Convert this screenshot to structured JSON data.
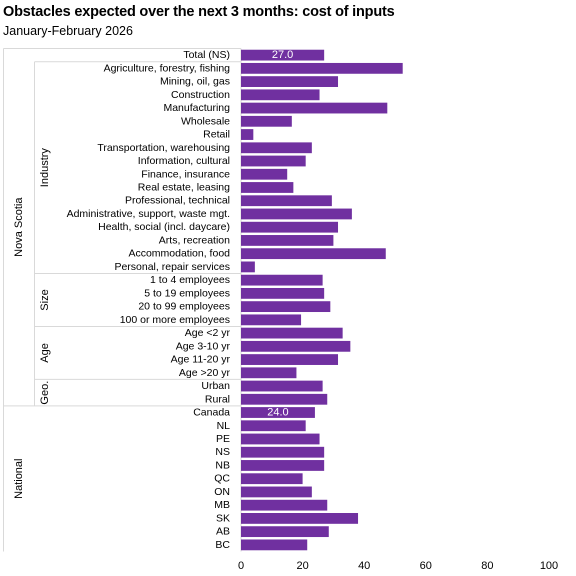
{
  "chart_data": {
    "type": "bar",
    "orientation": "horizontal",
    "title": "Obstacles expected over the next 3 months: cost of inputs",
    "subtitle": "January-February  2026",
    "xlim": [
      0,
      100
    ],
    "xticks": [
      0,
      20,
      40,
      60,
      80,
      100
    ],
    "bar_color": "#7030a0",
    "grid": false,
    "categories": [
      "Total (NS)",
      "Agriculture, forestry, fishing",
      "Mining, oil, gas",
      "Construction",
      "Manufacturing",
      "Wholesale",
      "Retail",
      "Transportation, warehousing",
      "Information, cultural",
      "Finance, insurance",
      "Real estate, leasing",
      "Professional, technical",
      "Administrative, support, waste mgt.",
      "Health, social (incl. daycare)",
      "Arts, recreation",
      "Accommodation, food",
      "Personal, repair services",
      "1 to 4 employees",
      "5 to 19 employees",
      "20 to 99 employees",
      "100 or more employees",
      "Age <2 yr",
      "Age 3-10 yr",
      "Age 11-20 yr",
      "Age >20 yr",
      "Urban",
      "Rural",
      "Canada",
      "NL",
      "PE",
      "NS",
      "NB",
      "QC",
      "ON",
      "MB",
      "SK",
      "AB",
      "BC"
    ],
    "values": [
      27.0,
      52.5,
      31.5,
      25.5,
      47.5,
      16.5,
      4.0,
      23.0,
      21.0,
      15.0,
      17.0,
      29.5,
      36.0,
      31.5,
      30.0,
      47.0,
      4.5,
      26.5,
      27.0,
      29.0,
      19.5,
      33.0,
      35.5,
      31.5,
      18.0,
      26.5,
      28.0,
      24.0,
      21.0,
      25.5,
      27.0,
      27.0,
      20.0,
      23.0,
      28.0,
      38.0,
      28.5,
      21.5
    ],
    "data_labels": [
      {
        "index": 0,
        "text": "27.0"
      },
      {
        "index": 27,
        "text": "24.0"
      }
    ],
    "groups": [
      {
        "label": "Nova Scotia",
        "level": "outer",
        "start": 0,
        "end": 26
      },
      {
        "label": "National",
        "level": "outer",
        "start": 27,
        "end": 37
      },
      {
        "label": "Industry",
        "level": "inner",
        "start": 1,
        "end": 16
      },
      {
        "label": "Size",
        "level": "inner",
        "start": 17,
        "end": 20
      },
      {
        "label": "Age",
        "level": "inner",
        "start": 21,
        "end": 24
      },
      {
        "label": "Geo.",
        "level": "inner",
        "start": 25,
        "end": 26
      }
    ]
  }
}
